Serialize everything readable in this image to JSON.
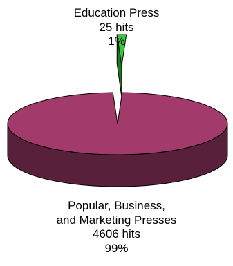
{
  "chart_data": {
    "type": "pie",
    "style": "3d",
    "title": "",
    "legend": "none",
    "slices": [
      {
        "name": "Education Press",
        "value": 25,
        "value_label": "25 hits",
        "percent_label": "1%",
        "color": "#33cc33"
      },
      {
        "name_lines": [
          "Popular, Business,",
          "and Marketing Presses"
        ],
        "value": 4606,
        "value_label": "4606 hits",
        "percent_label": "99%",
        "color": "#a23a6b"
      }
    ]
  }
}
